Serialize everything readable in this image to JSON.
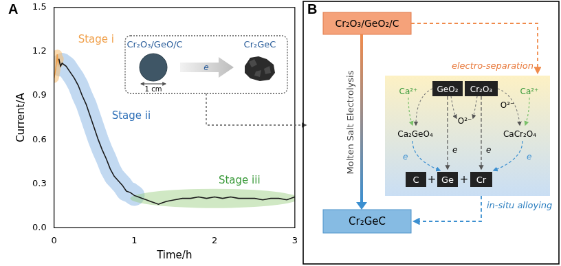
{
  "chart_data": {
    "type": "line",
    "panel_label": "A",
    "x_label": "Time/h",
    "y_label": "Current/A",
    "xlim": [
      0,
      3
    ],
    "xticks": [
      0,
      1,
      2,
      3
    ],
    "ylim": [
      0,
      1.5
    ],
    "yticks": [
      {
        "value": 0,
        "label": "0.0"
      },
      0.3,
      0.6,
      0.9,
      1.2,
      1.5
    ],
    "grid": false,
    "color": "#1a1a1a",
    "x": [
      0,
      0.02,
      0.04,
      0.05,
      0.06,
      0.08,
      0.1,
      0.15,
      0.2,
      0.25,
      0.3,
      0.35,
      0.4,
      0.45,
      0.5,
      0.55,
      0.6,
      0.65,
      0.7,
      0.75,
      0.8,
      0.85,
      0.9,
      0.95,
      1.0,
      1.05,
      1.1,
      1.15,
      1.2,
      1.25,
      1.3,
      1.35,
      1.4,
      1.5,
      1.6,
      1.7,
      1.8,
      1.9,
      2.0,
      2.1,
      2.2,
      2.3,
      2.4,
      2.5,
      2.6,
      2.7,
      2.8,
      2.9,
      3.0
    ],
    "values": [
      1.02,
      1.08,
      1.18,
      1.12,
      1.15,
      1.1,
      1.12,
      1.1,
      1.06,
      1.02,
      0.97,
      0.9,
      0.84,
      0.76,
      0.68,
      0.6,
      0.53,
      0.47,
      0.4,
      0.35,
      0.32,
      0.29,
      0.25,
      0.24,
      0.22,
      0.21,
      0.2,
      0.19,
      0.18,
      0.17,
      0.16,
      0.17,
      0.18,
      0.19,
      0.2,
      0.2,
      0.21,
      0.2,
      0.21,
      0.2,
      0.21,
      0.2,
      0.2,
      0.2,
      0.19,
      0.2,
      0.2,
      0.19,
      0.21
    ],
    "annotations": [
      {
        "text": "Stage i",
        "color": "#f0a04b"
      },
      {
        "text": "Stage ii",
        "color": "#2d6fb7"
      },
      {
        "text": "Stage iii",
        "color": "#3a9a3a"
      }
    ],
    "inset": {
      "left_label": "Cr₂O₃/GeO/C",
      "scale_label": "1 cm",
      "arrow_label": "e",
      "right_label": "Cr₂GeC"
    }
  },
  "diagram": {
    "panel_label": "B",
    "top_node": "Cr₂O₃/GeO₂/C",
    "bottom_node": "Cr₂GeC",
    "vertical_label": "Molten Salt Electrolysis",
    "separation_label": "electro-separation",
    "alloying_label": "in-situ alloying",
    "oxides": [
      "GeO₂",
      "Cr₂O₃"
    ],
    "cation": "Ca²⁺",
    "anion": "O²⁻",
    "electron": "e",
    "intermediates": [
      "Ca₂GeO₄",
      "CaCr₂O₄"
    ],
    "elements": [
      "C",
      "Ge",
      "Cr"
    ],
    "plus": "+"
  }
}
